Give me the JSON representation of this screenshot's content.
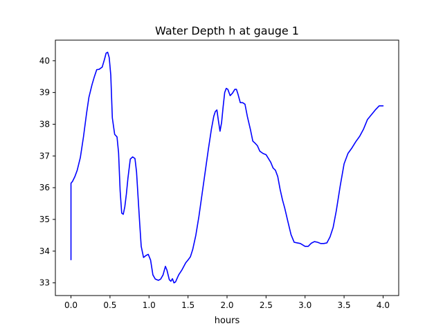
{
  "chart_data": {
    "type": "line",
    "title": "Water Depth h at gauge 1",
    "xlabel": "hours",
    "ylabel": "",
    "xlim": [
      -0.2,
      4.2
    ],
    "ylim": [
      32.6,
      40.65
    ],
    "xticks": [
      0.0,
      0.5,
      1.0,
      1.5,
      2.0,
      2.5,
      3.0,
      3.5,
      4.0
    ],
    "xtick_labels": [
      "0.0",
      "0.5",
      "1.0",
      "1.5",
      "2.0",
      "2.5",
      "3.0",
      "3.5",
      "4.0"
    ],
    "yticks": [
      33,
      34,
      35,
      36,
      37,
      38,
      39,
      40
    ],
    "ytick_labels": [
      "33",
      "34",
      "35",
      "36",
      "37",
      "38",
      "39",
      "40"
    ],
    "grid": false,
    "series": [
      {
        "color": "#0000ff",
        "x": [
          0.0,
          0.0,
          0.02,
          0.05,
          0.08,
          0.12,
          0.16,
          0.2,
          0.23,
          0.27,
          0.3,
          0.33,
          0.36,
          0.4,
          0.43,
          0.45,
          0.47,
          0.49,
          0.51,
          0.53,
          0.56,
          0.59,
          0.61,
          0.63,
          0.65,
          0.67,
          0.69,
          0.71,
          0.73,
          0.76,
          0.79,
          0.82,
          0.84,
          0.86,
          0.88,
          0.9,
          0.93,
          0.96,
          0.99,
          1.02,
          1.05,
          1.08,
          1.12,
          1.15,
          1.18,
          1.21,
          1.23,
          1.26,
          1.28,
          1.3,
          1.32,
          1.34,
          1.38,
          1.42,
          1.47,
          1.5,
          1.53,
          1.56,
          1.6,
          1.64,
          1.68,
          1.72,
          1.76,
          1.8,
          1.83,
          1.85,
          1.87,
          1.89,
          1.91,
          1.93,
          1.95,
          1.97,
          1.99,
          2.01,
          2.04,
          2.07,
          2.1,
          2.12,
          2.14,
          2.17,
          2.2,
          2.23,
          2.26,
          2.3,
          2.33,
          2.36,
          2.39,
          2.42,
          2.46,
          2.5,
          2.53,
          2.56,
          2.59,
          2.62,
          2.65,
          2.68,
          2.71,
          2.74,
          2.78,
          2.82,
          2.86,
          2.9,
          2.94,
          3.0,
          3.04,
          3.08,
          3.12,
          3.16,
          3.2,
          3.24,
          3.28,
          3.32,
          3.36,
          3.4,
          3.45,
          3.5,
          3.55,
          3.6,
          3.65,
          3.7,
          3.75,
          3.8,
          3.85,
          3.9,
          3.95,
          4.0
        ],
        "y": [
          33.73,
          36.14,
          36.2,
          36.35,
          36.55,
          36.95,
          37.6,
          38.35,
          38.85,
          39.25,
          39.5,
          39.72,
          39.73,
          39.8,
          40.05,
          40.24,
          40.27,
          40.1,
          39.55,
          38.2,
          37.68,
          37.6,
          37.1,
          35.9,
          35.2,
          35.16,
          35.4,
          35.8,
          36.3,
          36.9,
          36.97,
          36.92,
          36.5,
          35.7,
          34.9,
          34.15,
          33.8,
          33.86,
          33.9,
          33.72,
          33.25,
          33.12,
          33.08,
          33.12,
          33.25,
          33.52,
          33.4,
          33.1,
          33.05,
          33.13,
          33.0,
          33.03,
          33.25,
          33.4,
          33.63,
          33.72,
          33.82,
          34.05,
          34.5,
          35.1,
          35.8,
          36.5,
          37.2,
          37.85,
          38.25,
          38.4,
          38.45,
          38.1,
          37.78,
          38.05,
          38.55,
          39.0,
          39.13,
          39.1,
          38.9,
          38.98,
          39.1,
          39.1,
          38.95,
          38.68,
          38.68,
          38.63,
          38.25,
          37.83,
          37.47,
          37.4,
          37.32,
          37.15,
          37.08,
          37.04,
          36.92,
          36.8,
          36.62,
          36.55,
          36.35,
          35.95,
          35.62,
          35.35,
          34.93,
          34.52,
          34.28,
          34.26,
          34.24,
          34.15,
          34.15,
          34.25,
          34.3,
          34.28,
          34.24,
          34.24,
          34.26,
          34.45,
          34.75,
          35.27,
          36.05,
          36.75,
          37.08,
          37.25,
          37.45,
          37.62,
          37.85,
          38.15,
          38.3,
          38.45,
          38.58,
          38.58
        ]
      }
    ]
  }
}
